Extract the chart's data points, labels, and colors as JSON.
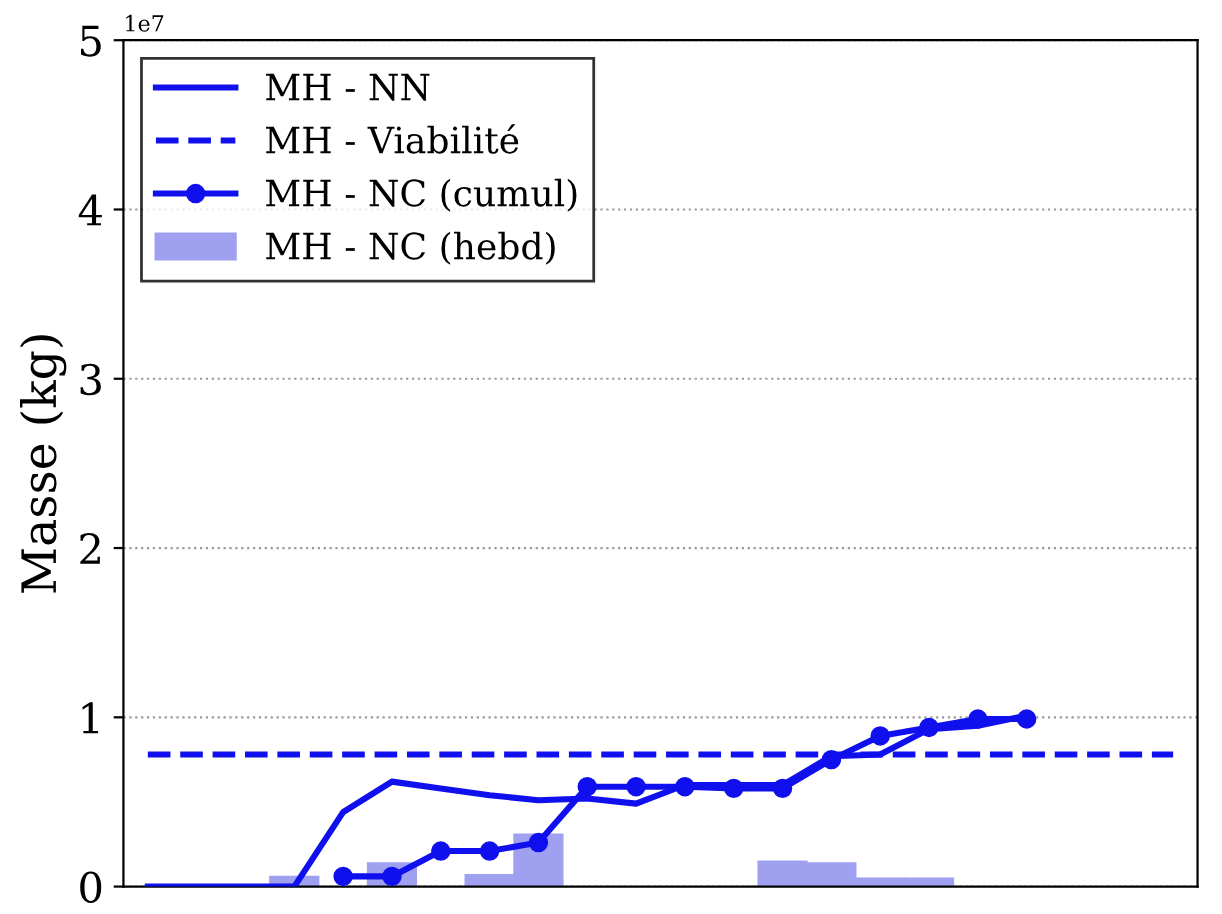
{
  "chart_data": {
    "type": "line",
    "ylabel": "Masse (kg)",
    "categories": [
      null,
      null,
      null,
      null,
      null,
      null,
      null,
      null,
      null,
      null,
      null,
      null,
      null,
      null,
      null,
      null,
      null,
      null,
      null,
      null,
      null,
      null
    ],
    "series": [
      {
        "name": "MH - NN",
        "color": "#1010ee",
        "line_style": "solid",
        "marker": "none",
        "values": [
          0,
          0,
          0,
          0,
          0.44,
          0.62,
          0.58,
          0.54,
          0.51,
          0.52,
          0.49,
          0.6,
          0.6,
          0.6,
          0.77,
          0.78,
          0.93,
          0.95,
          1.01,
          null,
          null,
          null
        ]
      },
      {
        "name": "MH - Viabilité",
        "color": "#1010ee",
        "line_style": "dashed",
        "marker": "none",
        "values": [
          0.78,
          0.78,
          0.78,
          0.78,
          0.78,
          0.78,
          0.78,
          0.78,
          0.78,
          0.78,
          0.78,
          0.78,
          0.78,
          0.78,
          0.78,
          0.78,
          0.78,
          0.78,
          0.78,
          0.78,
          0.78,
          0.78
        ]
      },
      {
        "name": "MH - NC (cumul)",
        "color": "#1010ee",
        "line_style": "solid",
        "marker": "circle",
        "values": [
          null,
          null,
          null,
          null,
          0.06,
          0.06,
          0.21,
          0.21,
          0.26,
          0.59,
          0.59,
          0.59,
          0.58,
          0.58,
          0.75,
          0.89,
          0.94,
          0.99,
          0.99,
          null,
          null,
          null
        ]
      },
      {
        "name": "MH - NC (hebd)",
        "type": "bar",
        "color": "#a0a0f0",
        "values": [
          null,
          null,
          null,
          0.06,
          null,
          0.14,
          null,
          0.07,
          0.31,
          null,
          null,
          null,
          null,
          0.15,
          0.14,
          0.05,
          0.05,
          null,
          null,
          null,
          null,
          null
        ]
      }
    ],
    "ylim": [
      0,
      5
    ],
    "yticks": [
      0,
      1,
      2,
      3,
      4,
      5
    ],
    "annotations": [
      "1e7"
    ],
    "grid": "y",
    "legend": "top left",
    "tick_labels": "y"
  }
}
